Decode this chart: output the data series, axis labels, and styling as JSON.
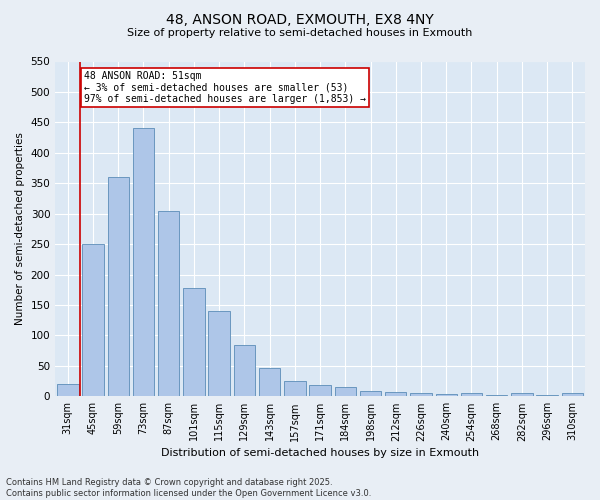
{
  "title1": "48, ANSON ROAD, EXMOUTH, EX8 4NY",
  "title2": "Size of property relative to semi-detached houses in Exmouth",
  "xlabel": "Distribution of semi-detached houses by size in Exmouth",
  "ylabel": "Number of semi-detached properties",
  "categories": [
    "31sqm",
    "45sqm",
    "59sqm",
    "73sqm",
    "87sqm",
    "101sqm",
    "115sqm",
    "129sqm",
    "143sqm",
    "157sqm",
    "171sqm",
    "184sqm",
    "198sqm",
    "212sqm",
    "226sqm",
    "240sqm",
    "254sqm",
    "268sqm",
    "282sqm",
    "296sqm",
    "310sqm"
  ],
  "bar_values": [
    20,
    250,
    360,
    440,
    305,
    178,
    140,
    85,
    47,
    25,
    18,
    15,
    8,
    7,
    5,
    3,
    5,
    2,
    5,
    2,
    5
  ],
  "bar_color": "#aec6e8",
  "bar_edge_color": "#5b8db8",
  "annotation_text": "48 ANSON ROAD: 51sqm\n← 3% of semi-detached houses are smaller (53)\n97% of semi-detached houses are larger (1,853) →",
  "annotation_box_color": "#ffffff",
  "annotation_box_edge": "#cc0000",
  "vline_color": "#cc0000",
  "vline_x_idx": 1.5,
  "ylim": [
    0,
    550
  ],
  "yticks": [
    0,
    50,
    100,
    150,
    200,
    250,
    300,
    350,
    400,
    450,
    500,
    550
  ],
  "footer1": "Contains HM Land Registry data © Crown copyright and database right 2025.",
  "footer2": "Contains public sector information licensed under the Open Government Licence v3.0.",
  "bg_color": "#e8eef5",
  "plot_bg_color": "#dce8f4"
}
